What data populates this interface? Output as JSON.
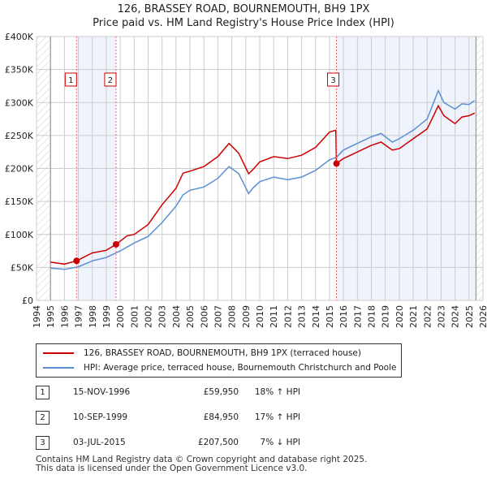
{
  "title_line1": "126, BRASSEY ROAD, BOURNEMOUTH, BH9 1PX",
  "title_line2": "Price paid vs. HM Land Registry's House Price Index (HPI)",
  "colors": {
    "price": "#cc0000",
    "hpi": "#5b8fd4",
    "shade": "#eef3fc",
    "marker": "#ff6666"
  },
  "chart_data": {
    "type": "line",
    "title": "126, BRASSEY ROAD, BOURNEMOUTH, BH9 1PX - Price paid vs. HM Land Registry's House Price Index (HPI)",
    "xlim": [
      1994,
      2026
    ],
    "ylim": [
      0,
      400000
    ],
    "grid": true,
    "x_ticks": [
      "1994",
      "1995",
      "1996",
      "1997",
      "1998",
      "1999",
      "2000",
      "2001",
      "2002",
      "2003",
      "2004",
      "2005",
      "2006",
      "2007",
      "2008",
      "2009",
      "2010",
      "2011",
      "2012",
      "2013",
      "2014",
      "2015",
      "2016",
      "2017",
      "2018",
      "2019",
      "2020",
      "2021",
      "2022",
      "2023",
      "2024",
      "2025",
      "2026"
    ],
    "y_ticks": [
      {
        "v": 0,
        "label": "£0"
      },
      {
        "v": 50000,
        "label": "£50K"
      },
      {
        "v": 100000,
        "label": "£100K"
      },
      {
        "v": 150000,
        "label": "£150K"
      },
      {
        "v": 200000,
        "label": "£200K"
      },
      {
        "v": 250000,
        "label": "£250K"
      },
      {
        "v": 300000,
        "label": "£300K"
      },
      {
        "v": 350000,
        "label": "£350K"
      },
      {
        "v": 400000,
        "label": "£400K"
      }
    ],
    "data_range": [
      1995,
      2025.5
    ],
    "series": [
      {
        "name": "126, BRASSEY ROAD, BOURNEMOUTH, BH9 1PX (terraced house)",
        "key": "price",
        "x": [
          1995,
          1996,
          1996.87,
          1998,
          1999,
          1999.7,
          2000.5,
          2001,
          2002,
          2003,
          2004,
          2004.5,
          2005,
          2006,
          2007,
          2007.8,
          2008.5,
          2009.2,
          2009.5,
          2010,
          2011,
          2012,
          2013,
          2014,
          2015,
          2015.45,
          2015.5,
          2016,
          2017,
          2018,
          2018.7,
          2019.5,
          2020,
          2021,
          2022,
          2022.8,
          2023.2,
          2024,
          2024.5,
          2025,
          2025.4
        ],
        "y": [
          58000,
          55000,
          59950,
          72000,
          76000,
          84950,
          98000,
          100000,
          115000,
          145000,
          170000,
          193000,
          196000,
          203000,
          218000,
          238000,
          223000,
          192000,
          198000,
          210000,
          218000,
          215000,
          220000,
          232000,
          255000,
          258000,
          207500,
          215000,
          225000,
          235000,
          240000,
          228000,
          230000,
          245000,
          260000,
          295000,
          280000,
          268000,
          278000,
          280000,
          284000
        ]
      },
      {
        "name": "HPI: Average price, terraced house, Bournemouth Christchurch and Poole",
        "key": "hpi",
        "x": [
          1995,
          1996,
          1997,
          1998,
          1999,
          2000,
          2001,
          2002,
          2003,
          2004,
          2004.5,
          2005,
          2006,
          2007,
          2007.8,
          2008.5,
          2009.2,
          2009.5,
          2010,
          2011,
          2012,
          2013,
          2014,
          2015,
          2015.5,
          2016,
          2017,
          2018,
          2018.7,
          2019.5,
          2020,
          2021,
          2022,
          2022.8,
          2023.2,
          2024,
          2024.5,
          2025,
          2025.4
        ],
        "y": [
          49000,
          47000,
          51000,
          60000,
          65000,
          75000,
          87000,
          97000,
          118000,
          143000,
          160000,
          167000,
          172000,
          185000,
          203000,
          192000,
          162000,
          170000,
          180000,
          187000,
          183000,
          187000,
          197000,
          213000,
          217000,
          228000,
          238000,
          248000,
          253000,
          240000,
          245000,
          258000,
          275000,
          318000,
          300000,
          290000,
          298000,
          297000,
          303000
        ]
      }
    ],
    "annotations": [
      {
        "label": "1",
        "x": 1996.87,
        "y": 59950
      },
      {
        "label": "2",
        "x": 1999.7,
        "y": 84950
      },
      {
        "label": "3",
        "x": 2015.5,
        "y": 207500
      }
    ]
  },
  "legend": {
    "price": "126, BRASSEY ROAD, BOURNEMOUTH, BH9 1PX (terraced house)",
    "hpi": "HPI: Average price, terraced house, Bournemouth Christchurch and Poole"
  },
  "sales": [
    {
      "num": "1",
      "date": "15-NOV-1996",
      "price": "£59,950",
      "hpi": "18% ↑ HPI"
    },
    {
      "num": "2",
      "date": "10-SEP-1999",
      "price": "£84,950",
      "hpi": "17% ↑ HPI"
    },
    {
      "num": "3",
      "date": "03-JUL-2015",
      "price": "£207,500",
      "hpi": "7% ↓ HPI"
    }
  ],
  "footer_line1": "Contains HM Land Registry data © Crown copyright and database right 2025.",
  "footer_line2": "This data is licensed under the Open Government Licence v3.0."
}
